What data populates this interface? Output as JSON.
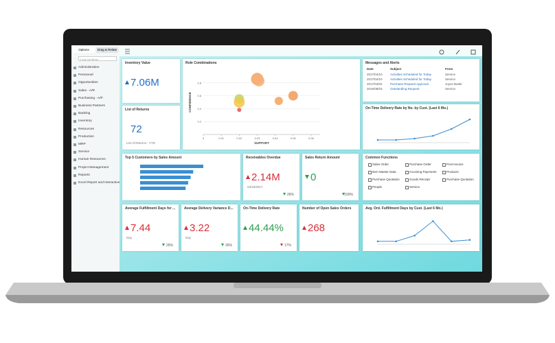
{
  "sidebar": {
    "tabs": [
      "Options",
      "Drag & Relate"
    ],
    "search": "Look Up Menu",
    "items": [
      "Administration",
      "Personnel",
      "Opportunities",
      "Sales - A/R",
      "Purchasing - A/P",
      "Business Partners",
      "Banking",
      "Inventory",
      "Resources",
      "Production",
      "MRP",
      "Service",
      "Human Resources",
      "Project Management",
      "Reports",
      "Excel Report and Interactive"
    ]
  },
  "tiles": {
    "inventory": {
      "title": "Inventory Value",
      "value": "7.06M",
      "color": "#1f6fc5",
      "arrow": "up"
    },
    "returns": {
      "title": "List of Returns",
      "value": "72",
      "note": "List of Returns - YTD",
      "color": "#1f6fc5"
    },
    "roles": {
      "title": "Role Combinations",
      "chart": {
        "type": "scatter",
        "xlabel": "SUPPORT",
        "ylabel": "CONFIDENCE",
        "xlim": [
          0,
          0.065
        ],
        "ylim": [
          0,
          1
        ],
        "xticks": [
          0,
          0.01,
          0.02,
          0.03,
          0.04,
          0.05,
          0.06
        ],
        "yticks": [
          0.2,
          0.4,
          0.6,
          0.8
        ],
        "points": [
          {
            "x": 0.03,
            "y": 0.86,
            "size": 9,
            "color": "#f5a25a"
          },
          {
            "x": 0.031,
            "y": 0.83,
            "size": 8,
            "color": "#f7b07a"
          },
          {
            "x": 0.05,
            "y": 0.6,
            "size": 7,
            "color": "#f39a55"
          },
          {
            "x": 0.042,
            "y": 0.52,
            "size": 6,
            "color": "#f5a25a"
          },
          {
            "x": 0.02,
            "y": 0.55,
            "size": 7,
            "color": "#b9d66b"
          },
          {
            "x": 0.02,
            "y": 0.5,
            "size": 8,
            "color": "#f3c84d"
          },
          {
            "x": 0.02,
            "y": 0.38,
            "size": 3,
            "color": "#e5534b"
          }
        ]
      }
    },
    "messages": {
      "title": "Messages and Alerts",
      "columns": [
        "Date",
        "Subject",
        "From"
      ],
      "rows": [
        [
          "2017/04/10",
          "Activities Scheduled for Today",
          "Service"
        ],
        [
          "2017/04/10",
          "Activities Scheduled for Today",
          "Service"
        ],
        [
          "2017/04/02",
          "Purchase Request Approval",
          "Joyce Butler"
        ],
        [
          "2016/08/03",
          "Outstanding Request",
          "Service"
        ]
      ]
    },
    "ontime_chart": {
      "title": "On-Time Delivery Rate by No. by Cust. (Last 6 Mo.)",
      "chart": {
        "type": "line",
        "ylim": [
          0,
          10
        ],
        "values": [
          1,
          1,
          1.5,
          2.5,
          5,
          8.5
        ],
        "color": "#3a8fd1"
      }
    },
    "top5": {
      "title": "Top 5 Customers by Sales Amount",
      "chart": {
        "type": "bar",
        "xlim": [
          0,
          100
        ],
        "values": [
          100,
          84,
          80,
          76,
          72
        ],
        "color": "#3a8fd1"
      }
    },
    "receivables": {
      "title": "Receivables Overdue",
      "value": "2.14M",
      "note": "04/18/2017",
      "change": "26%",
      "color": "#d62f3a",
      "arrow": "up",
      "change_color": "#2e9e4f"
    },
    "sales_return": {
      "title": "Sales Return Amount",
      "value": "0",
      "change": "100%",
      "color": "#2e9e4f",
      "arrow": "down",
      "change_color": "#2e9e4f"
    },
    "common": {
      "title": "Common Functions",
      "items": [
        "Sales Order",
        "Purchase Order",
        "Post Invoice",
        "Item Master Data",
        "Incoming Payments",
        "Products",
        "Purchase Quotation",
        "Goods Receipt",
        "Purchase Quotation",
        "People",
        "Service"
      ]
    },
    "fulfill": {
      "title": "Average Fulfillment Days for ...",
      "value": "7.44",
      "note": "Day",
      "change": "26%",
      "color": "#d62f3a",
      "arrow": "up",
      "change_color": "#2e9e4f"
    },
    "variance": {
      "title": "Average Delivery Variance D...",
      "value": "3.22",
      "note": "Day",
      "change": "26%",
      "color": "#d62f3a",
      "arrow": "up",
      "change_color": "#2e9e4f"
    },
    "ontime_rate": {
      "title": "On-Time Delivery Rate",
      "value": "44.44%",
      "change": "17%",
      "color": "#2e9e4f",
      "arrow": "up",
      "change_color": "#d62f3a"
    },
    "open_orders": {
      "title": "Number of Open Sales Orders",
      "value": "268",
      "color": "#d62f3a",
      "arrow": "up"
    },
    "avg_chart": {
      "title": "Avg. Ord. Fulfillment Days by Cust. (Last 6 Mo.)",
      "chart": {
        "type": "line",
        "ylim": [
          0,
          10
        ],
        "values": [
          1,
          1,
          3,
          8,
          1,
          1.5
        ],
        "color": "#3a8fd1"
      }
    }
  }
}
